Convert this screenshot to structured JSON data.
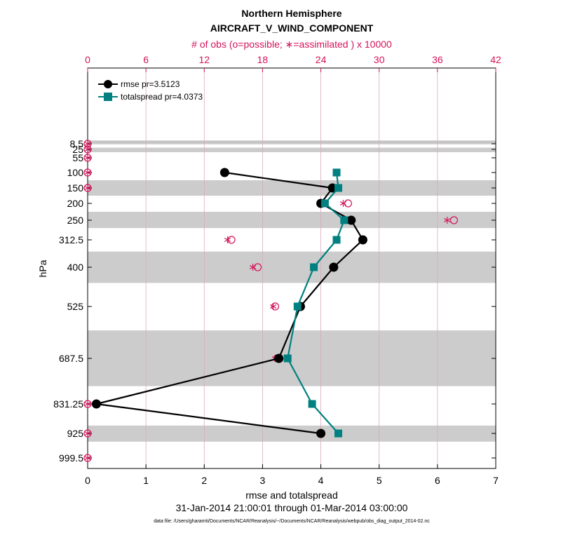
{
  "chart_data": {
    "type": "line",
    "title": "Northern Hemisphere",
    "subtitle": "AIRCRAFT_V_WIND_COMPONENT",
    "top_axis_label": "# of obs (o=possible; ∗=assimilated ) x 10000",
    "xlabel": "rmse and totalspread",
    "ylabel": "hPa",
    "date_range": "31-Jan-2014 21:00:01 through 01-Mar-2014 03:00:00",
    "footnote": "data file: /Users/gharamti/Documents/NCAR/Reanalysis/~/Documents/NCAR/Reanalysis/webpub/obs_diag_output_2014-02.nc",
    "xlim": [
      0,
      7
    ],
    "x_ticks": [
      "0",
      "1",
      "2",
      "3",
      "4",
      "5",
      "6",
      "7"
    ],
    "top_xlim": [
      0,
      42
    ],
    "top_ticks": [
      "0",
      "6",
      "12",
      "18",
      "24",
      "30",
      "36",
      "42"
    ],
    "levels": [
      8.5,
      25,
      55,
      100,
      150,
      200,
      250,
      312.5,
      400,
      525,
      687.5,
      831.25,
      925,
      999.5
    ],
    "level_labels": [
      "8.5",
      "25",
      "55",
      "100",
      "150",
      "200",
      "250",
      "312.5",
      "400",
      "525",
      "687.5",
      "831.25",
      "925",
      "999.5"
    ],
    "shaded_bands": [
      [
        0,
        10
      ],
      [
        20,
        35
      ],
      [
        125,
        175
      ],
      [
        225,
        275
      ],
      [
        350,
        450
      ],
      [
        600,
        775
      ],
      [
        900,
        950
      ]
    ],
    "series": [
      {
        "name": "rmse",
        "legend": "rmse pr=3.5123",
        "color": "#000000",
        "marker": "circle",
        "points": [
          [
            2.35,
            100
          ],
          [
            4.2,
            150
          ],
          [
            4.0,
            200
          ],
          [
            4.52,
            250
          ],
          [
            4.72,
            312.5
          ],
          [
            4.22,
            400
          ],
          [
            3.65,
            525
          ],
          [
            3.28,
            687.5
          ],
          [
            0.15,
            831.25
          ],
          [
            4.0,
            925
          ]
        ]
      },
      {
        "name": "totalspread",
        "legend": "totalspread pr=4.0373",
        "color": "#008080",
        "marker": "square",
        "points": [
          [
            4.27,
            100
          ],
          [
            4.3,
            150
          ],
          [
            4.07,
            200
          ],
          [
            4.4,
            250
          ],
          [
            4.27,
            312.5
          ],
          [
            3.88,
            400
          ],
          [
            3.6,
            525
          ],
          [
            3.43,
            687.5
          ],
          [
            3.85,
            831.25
          ],
          [
            4.3,
            925
          ]
        ]
      }
    ],
    "obs_possible": [
      [
        0,
        8.5
      ],
      [
        0,
        25
      ],
      [
        0,
        55
      ],
      [
        0,
        100
      ],
      [
        0,
        150
      ],
      [
        26.8,
        200
      ],
      [
        37.7,
        250
      ],
      [
        14.8,
        312.5
      ],
      [
        17.5,
        400
      ],
      [
        19.3,
        525
      ],
      [
        19.5,
        687.5
      ],
      [
        0,
        831.25
      ],
      [
        0,
        925
      ],
      [
        0,
        999.5
      ]
    ],
    "obs_assimilated": [
      [
        0,
        8.5
      ],
      [
        0,
        25
      ],
      [
        0,
        55
      ],
      [
        0,
        100
      ],
      [
        0,
        150
      ],
      [
        26.3,
        200
      ],
      [
        37.0,
        250
      ],
      [
        14.4,
        312.5
      ],
      [
        17.0,
        400
      ],
      [
        19.1,
        525
      ],
      [
        19.3,
        687.5
      ],
      [
        0,
        831.25
      ],
      [
        0,
        925
      ],
      [
        0,
        999.5
      ]
    ],
    "colors": {
      "obs": "#d4145a",
      "grid": "#d8a9bd",
      "band": "#cccccc",
      "rmse": "#000000",
      "totalspread": "#008080"
    }
  }
}
